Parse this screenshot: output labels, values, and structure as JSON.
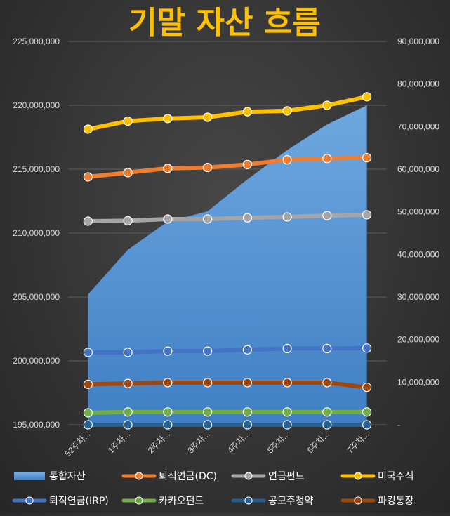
{
  "chart_data": {
    "type": "line",
    "title": "기말 자산 흐름",
    "categories": [
      "52주차...",
      "1주차...",
      "2주차...",
      "3주차...",
      "4주차...",
      "5주차...",
      "6주차...",
      "7주차..."
    ],
    "left_axis": {
      "min": 195000000,
      "max": 225000000,
      "ticks": [
        {
          "v": 195000000,
          "label": "195,000,000"
        },
        {
          "v": 200000000,
          "label": "200,000,000"
        },
        {
          "v": 205000000,
          "label": "205,000,000"
        },
        {
          "v": 210000000,
          "label": "210,000,000"
        },
        {
          "v": 215000000,
          "label": "215,000,000"
        },
        {
          "v": 220000000,
          "label": "220,000,000"
        },
        {
          "v": 225000000,
          "label": "225,000,000"
        }
      ]
    },
    "right_axis": {
      "min": 0,
      "max": 90000000,
      "ticks": [
        {
          "v": 0,
          "label": "-"
        },
        {
          "v": 10000000,
          "label": "10,000,000"
        },
        {
          "v": 20000000,
          "label": "20,000,000"
        },
        {
          "v": 30000000,
          "label": "30,000,000"
        },
        {
          "v": 40000000,
          "label": "40,000,000"
        },
        {
          "v": 50000000,
          "label": "50,000,000"
        },
        {
          "v": 60000000,
          "label": "60,000,000"
        },
        {
          "v": 70000000,
          "label": "70,000,000"
        },
        {
          "v": 80000000,
          "label": "80,000,000"
        },
        {
          "v": 90000000,
          "label": "90,000,000"
        }
      ]
    },
    "grid": true,
    "legend_position": "bottom",
    "area_series": {
      "name": "통합자산",
      "axis": "left",
      "color": "#5b9bd5",
      "values": [
        205200000,
        208700000,
        210900000,
        211700000,
        214200000,
        216500000,
        218500000,
        220000000
      ]
    },
    "series": [
      {
        "name": "퇴직연금(DC)",
        "axis": "right",
        "color": "#ed7d31",
        "marker_color": "#ed7d31",
        "values": [
          58200000,
          59200000,
          60200000,
          60400000,
          61100000,
          62200000,
          62500000,
          62700000
        ]
      },
      {
        "name": "연금펀드",
        "axis": "right",
        "color": "#a5a5a5",
        "marker_color": "#a5a5a5",
        "values": [
          47800000,
          47900000,
          48300000,
          48300000,
          48600000,
          48800000,
          49100000,
          49300000
        ]
      },
      {
        "name": "미국주식",
        "axis": "right",
        "color": "#ffc000",
        "marker_color": "#ffc000",
        "values": [
          69400000,
          71300000,
          71900000,
          72200000,
          73500000,
          73700000,
          75000000,
          77000000
        ]
      },
      {
        "name": "퇴직연금(IRP)",
        "axis": "right",
        "color": "#4472c4",
        "marker_color": "#4472c4",
        "values": [
          17000000,
          17000000,
          17300000,
          17300000,
          17600000,
          17900000,
          17900000,
          18000000
        ]
      },
      {
        "name": "카카오펀드",
        "axis": "right",
        "color": "#70ad47",
        "marker_color": "#70ad47",
        "values": [
          2800000,
          3000000,
          3000000,
          3000000,
          3000000,
          3000000,
          3000000,
          3000000
        ]
      },
      {
        "name": "공모주청약",
        "axis": "right",
        "color": "#255e91",
        "marker_color": "#255e91",
        "values": [
          0,
          0,
          0,
          0,
          0,
          0,
          0,
          0
        ]
      },
      {
        "name": "파킹통장",
        "axis": "right",
        "color": "#9e480e",
        "marker_color": "#9e480e",
        "values": [
          9500000,
          9700000,
          9900000,
          9900000,
          9900000,
          9900000,
          9900000,
          8800000
        ]
      }
    ],
    "legend": [
      {
        "name": "통합자산",
        "kind": "area",
        "color": "#5b9bd5"
      },
      {
        "name": "퇴직연금(DC)",
        "kind": "line",
        "color": "#ed7d31"
      },
      {
        "name": "연금펀드",
        "kind": "line",
        "color": "#a5a5a5"
      },
      {
        "name": "미국주식",
        "kind": "line",
        "color": "#ffc000"
      },
      {
        "name": "퇴직연금(IRP)",
        "kind": "line",
        "color": "#4472c4"
      },
      {
        "name": "카카오펀드",
        "kind": "line",
        "color": "#70ad47"
      },
      {
        "name": "공모주청약",
        "kind": "line",
        "color": "#255e91"
      },
      {
        "name": "파킹통장",
        "kind": "line",
        "color": "#9e480e"
      }
    ]
  }
}
